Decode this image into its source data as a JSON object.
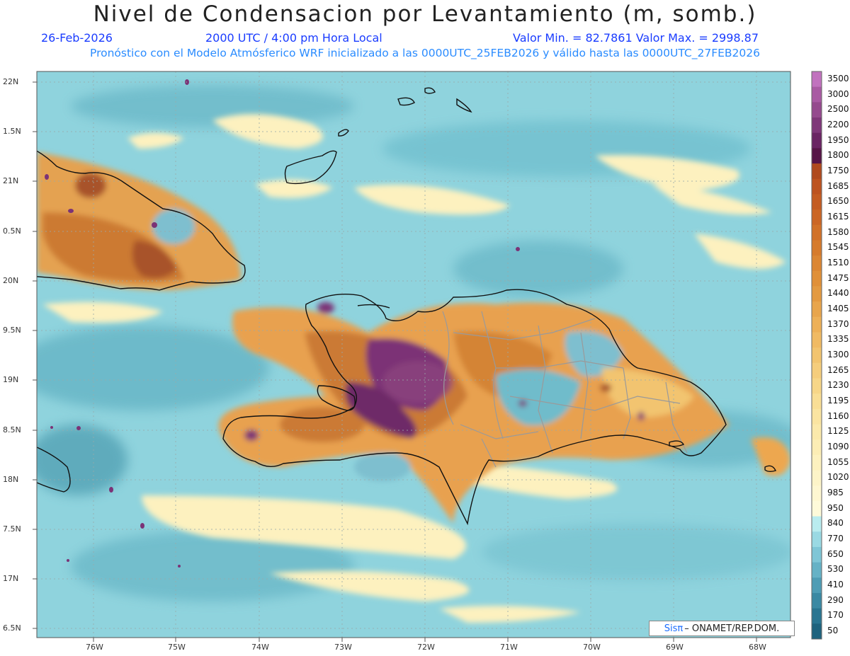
{
  "header": {
    "title": "Nivel de Condensacion por Levantamiento (m, somb.)",
    "date": "26-Feb-2026",
    "time": "2000 UTC / 4:00 pm Hora Local",
    "minmax": "Valor Min. = 82.7861   Valor Max. = 2998.87",
    "subtitle": "Pronóstico con el Modelo Atmósferico WRF inicializado a las 0000UTC_25FEB2026 y válido hasta las  0000UTC_27FEB2026"
  },
  "axes": {
    "lat_labels": [
      "22N",
      "1.5N",
      "21N",
      "0.5N",
      "20N",
      "9.5N",
      "19N",
      "8.5N",
      "18N",
      "7.5N",
      "17N",
      "6.5N"
    ],
    "lon_labels": [
      "76W",
      "75W",
      "74W",
      "73W",
      "72W",
      "71W",
      "70W",
      "69W",
      "68W"
    ]
  },
  "colorbar": {
    "levels": [
      "3500",
      "3000",
      "2500",
      "2200",
      "1950",
      "1800",
      "1750",
      "1685",
      "1650",
      "1615",
      "1580",
      "1545",
      "1510",
      "1475",
      "1440",
      "1405",
      "1370",
      "1335",
      "1300",
      "1265",
      "1230",
      "1195",
      "1160",
      "1125",
      "1090",
      "1055",
      "1020",
      "985",
      "950",
      "840",
      "770",
      "650",
      "530",
      "410",
      "290",
      "170",
      "50"
    ],
    "colors": [
      "#c172be",
      "#a95aa3",
      "#954a8e",
      "#7f3779",
      "#6a2463",
      "#561547",
      "#b04a1e",
      "#bd5320",
      "#c45c22",
      "#cb6625",
      "#d17128",
      "#d67b2c",
      "#db8633",
      "#e09038",
      "#e39a41",
      "#e8a54c",
      "#edb057",
      "#f0ba63",
      "#f2c46f",
      "#f5cd7c",
      "#f7d688",
      "#f9de95",
      "#fae4a1",
      "#fbe9ab",
      "#fcedb5",
      "#fdf1bf",
      "#fdf4c8",
      "#fef7d1",
      "#fefad9",
      "#b9ecef",
      "#9ad9e3",
      "#7fc6d6",
      "#66b2c6",
      "#4f9db5",
      "#3b89a3",
      "#2a7591",
      "#1f637e"
    ]
  },
  "credit": {
    "brand": "Sisπ",
    "text": "– ONAMET/REP.DOM."
  },
  "colors": {
    "ocean_base": "#8fd3dd",
    "land_orange": "#d8832f",
    "land_purple": "#7b3376"
  }
}
